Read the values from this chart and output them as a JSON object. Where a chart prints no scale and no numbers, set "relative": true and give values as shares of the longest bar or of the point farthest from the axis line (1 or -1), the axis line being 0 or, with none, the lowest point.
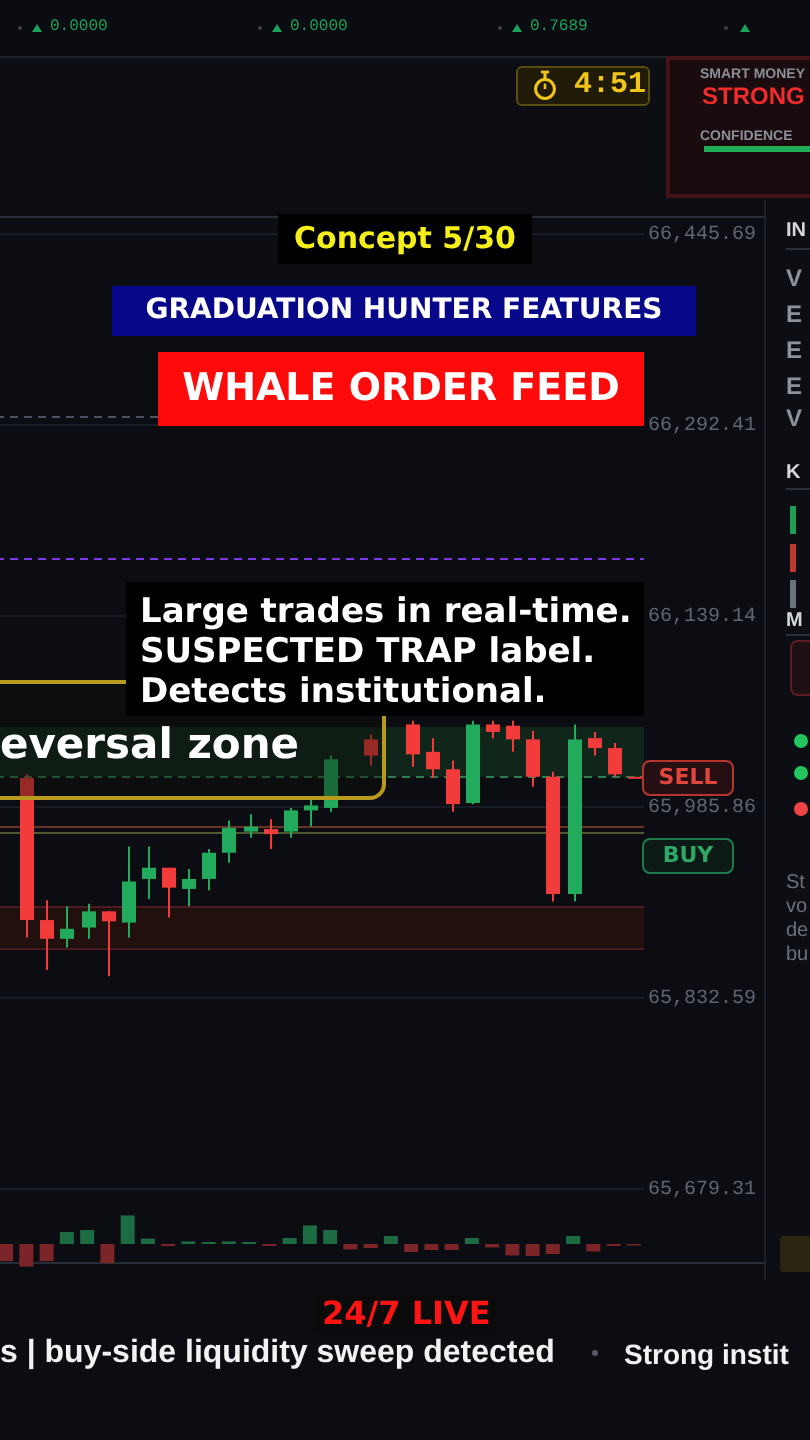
{
  "chart_data": [
    {
      "type": "candlestick",
      "title": "Concept 5/30",
      "subtitle": "GRADUATION HUNTER FEATURES",
      "annotations": [
        "WHALE ORDER FEED",
        "Large trades in real-time.",
        "SUSPECTED TRAP label.",
        "Detects institutional.",
        "eversal zone",
        "SELL",
        "BUY",
        "24/7 LIVE",
        "s | buy-side liquidity sweep detected",
        "Strong instit",
        "0.0000",
        "0.0000",
        "0.7689",
        "4:51",
        "SMART MONEY",
        "STRONG",
        "CONFIDENCE",
        "IN",
        "V",
        "E",
        "E",
        "E",
        "V",
        "K",
        "M",
        "St",
        "vo",
        "de",
        "bu"
      ],
      "categories": [
        null,
        null,
        null,
        null,
        null,
        null,
        null,
        null,
        null,
        null,
        null,
        null,
        null,
        null,
        null,
        null,
        null,
        null,
        null,
        null,
        null,
        null,
        null,
        null,
        null,
        null,
        null,
        null,
        null,
        null,
        null,
        null
      ],
      "ohlc": [
        null,
        [
          66009,
          66012,
          65881,
          65895
        ],
        [
          65895,
          65911,
          65855,
          65880
        ],
        [
          65880,
          65906,
          65873,
          65888
        ],
        [
          65889,
          65908,
          65880,
          65902
        ],
        [
          65902,
          65902,
          65850,
          65894
        ],
        [
          65893,
          65954,
          65881,
          65926
        ],
        [
          65928,
          65954,
          65912,
          65937
        ],
        [
          65937,
          65937,
          65897,
          65921
        ],
        [
          65920,
          65936,
          65906,
          65928
        ],
        [
          65928,
          65952,
          65919,
          65949
        ],
        [
          65949,
          65975,
          65941,
          65969
        ],
        [
          65966,
          65980,
          65961,
          65970
        ],
        [
          65968,
          65976,
          65952,
          65964
        ],
        [
          65966,
          65985,
          65961,
          65983
        ],
        [
          65983,
          65993,
          65970,
          65987
        ],
        [
          65985,
          66027,
          65982,
          66024
        ],
        null,
        [
          66040,
          66044,
          66019,
          66027
        ],
        null,
        [
          66052,
          66055,
          66018,
          66028
        ],
        [
          66030,
          66041,
          66009,
          66016
        ],
        [
          66016,
          66023,
          65982,
          65988
        ],
        [
          65989,
          66055,
          65988,
          66052
        ],
        [
          66052,
          66055,
          66041,
          66046
        ],
        [
          66051,
          66055,
          66030,
          66040
        ],
        [
          66040,
          66047,
          66002,
          66010
        ],
        [
          66010,
          66014,
          65910,
          65916
        ],
        [
          65916,
          66052,
          65910,
          66040
        ],
        [
          66041,
          66046,
          66027,
          66033
        ],
        [
          66033,
          66037,
          66010,
          66012
        ],
        [
          66010,
          66010,
          66009,
          66009
        ]
      ],
      "colors": [
        null,
        "#f23b3b",
        "#f23b3b",
        "#22ab5c",
        "#22ab5c",
        "#f23b3b",
        "#22ab5c",
        "#22ab5c",
        "#f23b3b",
        "#22ab5c",
        "#22ab5c",
        "#22ab5c",
        "#22ab5c",
        "#f23b3b",
        "#22ab5c",
        "#22ab5c",
        "#22ab5c",
        null,
        "#f23b3b",
        null,
        "#f23b3b",
        "#f23b3b",
        "#f23b3b",
        "#22ab5c",
        "#f23b3b",
        "#f23b3b",
        "#f23b3b",
        "#f23b3b",
        "#22ab5c",
        "#f23b3b",
        "#f23b3b",
        "#f23b3b"
      ],
      "ylim": [
        65619,
        66460
      ],
      "yticks": [
        {
          "value": 66445.69,
          "label": "66,445.69"
        },
        {
          "value": 66292.41,
          "label": "66,292.41"
        },
        {
          "value": 66139.14,
          "label": "66,139.14"
        },
        {
          "value": 65985.86,
          "label": "65,985.86"
        },
        {
          "value": 65832.59,
          "label": "65,832.59"
        },
        {
          "value": 65679.31,
          "label": "65,679.31"
        }
      ],
      "grid": "y",
      "tick_labels": "y",
      "ref_lines": [
        {
          "axis": "y",
          "value": 66300,
          "color": "#4b5263",
          "line_style": "dashed"
        },
        {
          "axis": "y",
          "value": 66185,
          "color": "#7c3aed",
          "line_style": "dashed"
        },
        {
          "axis": "y",
          "value": 66010,
          "color": "#2f7d4f",
          "line_style": "dashed"
        },
        {
          "axis": "y",
          "value": 65971,
          "color": "#6a3328"
        },
        {
          "axis": "y",
          "value": 65966,
          "color": "#4f5a34"
        },
        {
          "axis": "y",
          "value": 65906,
          "color": "#4d1c22"
        },
        {
          "axis": "y",
          "value": 65873,
          "color": "#4d1c22"
        }
      ],
      "bands": [
        {
          "axis": "y",
          "from": 66010,
          "to": 66050,
          "color": "#10261b"
        },
        {
          "axis": "y",
          "from": 65873,
          "to": 65906,
          "color": "#22100f"
        }
      ]
    },
    {
      "type": "bar",
      "relative": true,
      "tick_labels": false,
      "categories": [
        null,
        null,
        null,
        null,
        null,
        null,
        null,
        null,
        null,
        null,
        null,
        null,
        null,
        null,
        null,
        null,
        null,
        null,
        null,
        null,
        null,
        null,
        null,
        null,
        null,
        null,
        null,
        null,
        null,
        null,
        null,
        null
      ],
      "values": [
        -0.6,
        -0.79,
        -0.6,
        0.42,
        0.49,
        -0.67,
        1,
        0.19,
        -0.07,
        0.09,
        0.07,
        0.09,
        0.07,
        -0.07,
        0.21,
        0.65,
        0.49,
        -0.19,
        -0.14,
        0.28,
        -0.28,
        -0.21,
        -0.21,
        0.21,
        -0.12,
        -0.4,
        -0.42,
        -0.35,
        0.28,
        -0.26,
        -0.07,
        -0.05
      ],
      "colors": [
        "#7c2528",
        "#7c2528",
        "#7c2528",
        "#1c6b43",
        "#1c6b43",
        "#7c2528",
        "#1c6b43",
        "#1c6b43",
        "#7c2528",
        "#1c6b43",
        "#1c6b43",
        "#1c6b43",
        "#1c6b43",
        "#7c2528",
        "#1c6b43",
        "#1c6b43",
        "#1c6b43",
        "#7c2528",
        "#7c2528",
        "#1c6b43",
        "#7c2528",
        "#7c2528",
        "#7c2528",
        "#1c6b43",
        "#7c2528",
        "#7c2528",
        "#7c2528",
        "#7c2528",
        "#1c6b43",
        "#7c2528",
        "#7c2528",
        "#7c2528"
      ]
    }
  ]
}
